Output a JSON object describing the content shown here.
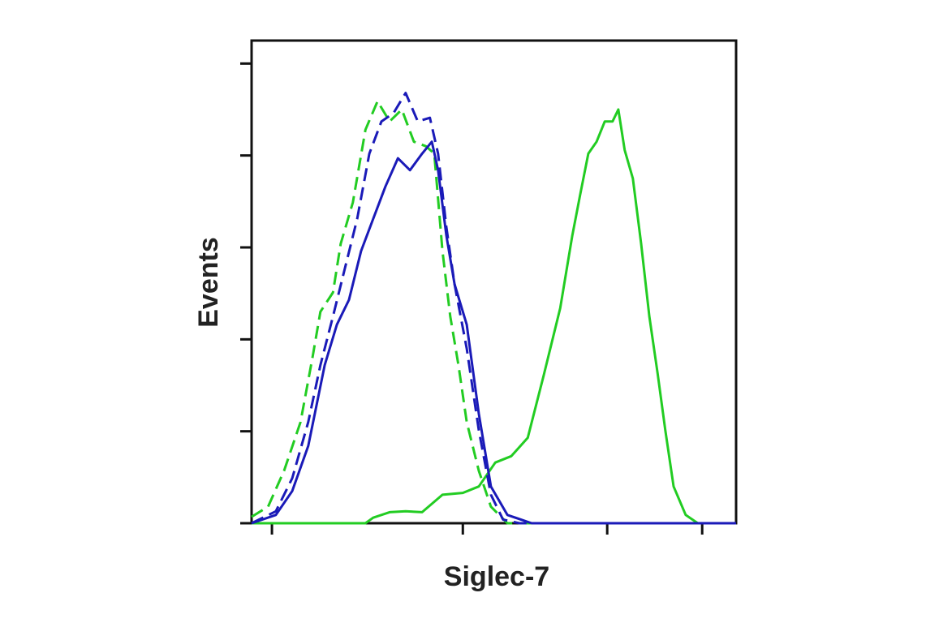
{
  "chart_data": {
    "type": "line",
    "xlabel": "Siglec-7",
    "ylabel": "Events",
    "xlim": [
      0,
      100
    ],
    "ylim": [
      0,
      5.25
    ],
    "xticks": [
      4.2,
      43.6,
      73.4,
      93.0
    ],
    "yticks": [
      0,
      1,
      2,
      3,
      4,
      5
    ],
    "series": [
      {
        "color": "#22cc22",
        "dash": false,
        "x": [
          0,
          23.5,
          25.1,
          28.5,
          31.8,
          35.2,
          39.4,
          43.6,
          46.9,
          50.3,
          53.6,
          57.0,
          60.3,
          63.7,
          66.2,
          67.8,
          69.5,
          71.2,
          72.9,
          74.5,
          75.7,
          77.0,
          78.7,
          80.4,
          82.1,
          83.8,
          85.4,
          87.1,
          89.6,
          92.1,
          100
        ],
        "values": [
          0,
          0,
          0.06,
          0.12,
          0.13,
          0.12,
          0.31,
          0.33,
          0.4,
          0.66,
          0.73,
          0.93,
          1.61,
          2.34,
          3.13,
          3.57,
          4.02,
          4.15,
          4.37,
          4.37,
          4.5,
          4.06,
          3.75,
          3.04,
          2.25,
          1.63,
          1.01,
          0.4,
          0.09,
          0,
          0
        ]
      },
      {
        "color": "#22cc22",
        "dash": true,
        "x": [
          0,
          3.4,
          6.7,
          10.1,
          12.6,
          14.2,
          16.8,
          18.4,
          20.9,
          23.5,
          26.0,
          28.5,
          31.0,
          33.5,
          36.0,
          37.7,
          39.4,
          41.0,
          42.7,
          44.4,
          46.9,
          49.4,
          52.8,
          100
        ],
        "values": [
          0.07,
          0.18,
          0.57,
          1.1,
          1.81,
          2.3,
          2.51,
          3.04,
          3.49,
          4.28,
          4.59,
          4.37,
          4.5,
          4.15,
          4.1,
          4.02,
          2.96,
          2.25,
          1.72,
          1.1,
          0.57,
          0.18,
          0,
          0
        ]
      },
      {
        "color": "#1a1ab8",
        "dash": true,
        "x": [
          0,
          5.0,
          8.4,
          11.7,
          14.2,
          16.8,
          19.3,
          21.8,
          24.3,
          26.8,
          29.3,
          31.8,
          34.3,
          36.8,
          38.5,
          40.2,
          41.9,
          44.4,
          46.9,
          49.4,
          51.9,
          55.3,
          100
        ],
        "values": [
          0,
          0.13,
          0.49,
          1.1,
          1.72,
          2.25,
          2.78,
          3.31,
          4.02,
          4.37,
          4.46,
          4.68,
          4.37,
          4.41,
          4.02,
          3.22,
          2.6,
          1.9,
          1.01,
          0.31,
          0.04,
          0,
          0
        ]
      },
      {
        "color": "#1a1ab8",
        "dash": false,
        "x": [
          0,
          5.0,
          8.4,
          11.7,
          15.1,
          17.6,
          20.1,
          22.6,
          25.1,
          27.6,
          30.2,
          32.7,
          35.2,
          37.2,
          38.5,
          40.2,
          41.9,
          44.4,
          46.9,
          49.4,
          52.8,
          57.8,
          100
        ],
        "values": [
          0,
          0.09,
          0.35,
          0.84,
          1.72,
          2.16,
          2.43,
          2.96,
          3.31,
          3.66,
          3.97,
          3.84,
          4.02,
          4.15,
          3.84,
          3.13,
          2.6,
          2.16,
          1.19,
          0.4,
          0.09,
          0,
          0
        ]
      }
    ]
  }
}
